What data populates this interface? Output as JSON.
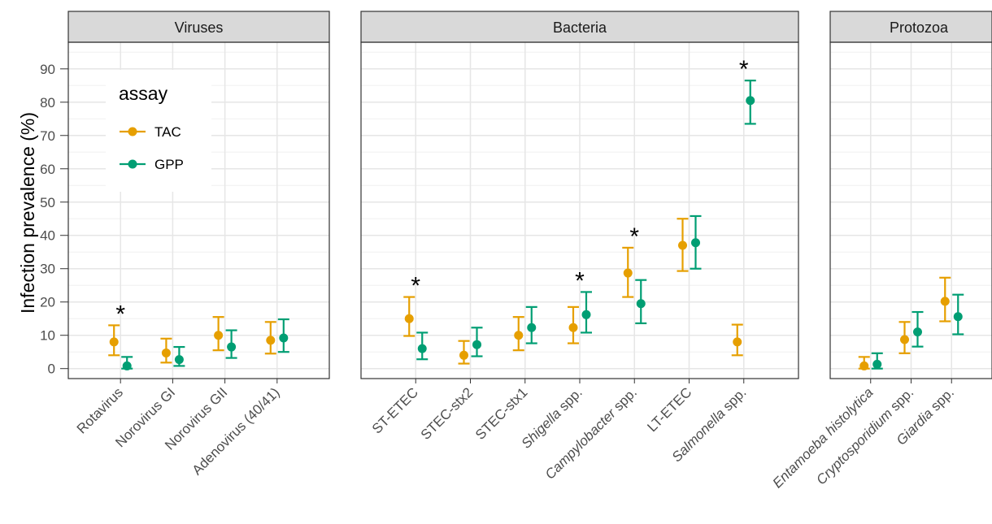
{
  "chart_data": {
    "type": "scatter",
    "subtype": "point-range (mean with error bars), faceted",
    "ylabel": "Infection prevalence (%)",
    "xlabel": "",
    "ylim": [
      -3,
      98
    ],
    "y_ticks": [
      0,
      10,
      20,
      30,
      40,
      50,
      60,
      70,
      80,
      90
    ],
    "grid": true,
    "legend": {
      "title": "assay",
      "position": "top-left inside first panel",
      "entries": [
        {
          "name": "TAC",
          "color": "#E69F00"
        },
        {
          "name": "GPP",
          "color": "#009E73"
        }
      ]
    },
    "significance_marker": "*",
    "facets": [
      {
        "title": "Viruses",
        "categories": [
          {
            "label": "Rotavirus",
            "italic_part": "",
            "plain_part": "Rotavirus",
            "significant": true,
            "TAC": {
              "value": 8,
              "low": 4,
              "high": 13
            },
            "GPP": {
              "value": 0.8,
              "low": 0,
              "high": 3.5
            }
          },
          {
            "label": "Norovirus GI",
            "italic_part": "",
            "plain_part": "Norovirus GI",
            "significant": false,
            "TAC": {
              "value": 4.7,
              "low": 1.8,
              "high": 9
            },
            "GPP": {
              "value": 2.7,
              "low": 0.8,
              "high": 6.5
            }
          },
          {
            "label": "Norovirus GII",
            "italic_part": "",
            "plain_part": "Norovirus GII",
            "significant": false,
            "TAC": {
              "value": 10,
              "low": 5.5,
              "high": 15.5
            },
            "GPP": {
              "value": 6.5,
              "low": 3.2,
              "high": 11.5
            }
          },
          {
            "label": "Adenovirus (40/41)",
            "italic_part": "",
            "plain_part": "Adenovirus (40/41)",
            "significant": false,
            "TAC": {
              "value": 8.5,
              "low": 4.5,
              "high": 14
            },
            "GPP": {
              "value": 9.2,
              "low": 5,
              "high": 14.8
            }
          }
        ]
      },
      {
        "title": "Bacteria",
        "categories": [
          {
            "label": "ST-ETEC",
            "italic_part": "",
            "plain_part": "ST-ETEC",
            "significant": true,
            "TAC": {
              "value": 15,
              "low": 9.8,
              "high": 21.5
            },
            "GPP": {
              "value": 6,
              "low": 2.8,
              "high": 10.8
            }
          },
          {
            "label": "STEC-stx2",
            "italic_part": "",
            "plain_part": "STEC-stx2",
            "significant": false,
            "TAC": {
              "value": 4,
              "low": 1.5,
              "high": 8.3
            },
            "GPP": {
              "value": 7.2,
              "low": 3.7,
              "high": 12.3
            }
          },
          {
            "label": "STEC-stx1",
            "italic_part": "",
            "plain_part": "STEC-stx1",
            "significant": false,
            "TAC": {
              "value": 10,
              "low": 5.5,
              "high": 15.5
            },
            "GPP": {
              "value": 12.3,
              "low": 7.6,
              "high": 18.5
            }
          },
          {
            "label": "Shigella spp.",
            "italic_part": "Shigella",
            "plain_part": " spp.",
            "significant": true,
            "TAC": {
              "value": 12.3,
              "low": 7.6,
              "high": 18.5
            },
            "GPP": {
              "value": 16.2,
              "low": 10.8,
              "high": 23
            }
          },
          {
            "label": "Campylobacter spp.",
            "italic_part": "Campylobacter",
            "plain_part": " spp.",
            "significant": true,
            "TAC": {
              "value": 28.7,
              "low": 21.5,
              "high": 36.3
            },
            "GPP": {
              "value": 19.5,
              "low": 13.6,
              "high": 26.6
            }
          },
          {
            "label": "LT-ETEC",
            "italic_part": "",
            "plain_part": "LT-ETEC",
            "significant": false,
            "TAC": {
              "value": 37,
              "low": 29.3,
              "high": 45
            },
            "GPP": {
              "value": 37.8,
              "low": 30,
              "high": 45.8
            }
          },
          {
            "label": "Salmonella spp.",
            "italic_part": "Salmonella",
            "plain_part": " spp.",
            "significant": true,
            "TAC": {
              "value": 8,
              "low": 4,
              "high": 13.2
            },
            "GPP": {
              "value": 80.5,
              "low": 73.5,
              "high": 86.5
            }
          }
        ]
      },
      {
        "title": "Protozoa",
        "categories": [
          {
            "label": "Entamoeba histolytica",
            "italic_part": "Entamoeba histolytica",
            "plain_part": "",
            "significant": false,
            "TAC": {
              "value": 0.8,
              "low": 0,
              "high": 3.5
            },
            "GPP": {
              "value": 1.3,
              "low": 0,
              "high": 4.6
            }
          },
          {
            "label": "Cryptosporidium spp.",
            "italic_part": "Cryptosporidium",
            "plain_part": " spp.",
            "significant": false,
            "TAC": {
              "value": 8.7,
              "low": 4.6,
              "high": 14
            },
            "GPP": {
              "value": 11,
              "low": 6.6,
              "high": 17
            }
          },
          {
            "label": "Giardia spp.",
            "italic_part": "Giardia",
            "plain_part": " spp.",
            "significant": false,
            "TAC": {
              "value": 20.2,
              "low": 14.2,
              "high": 27.3
            },
            "GPP": {
              "value": 15.6,
              "low": 10.3,
              "high": 22.2
            }
          }
        ]
      }
    ]
  }
}
